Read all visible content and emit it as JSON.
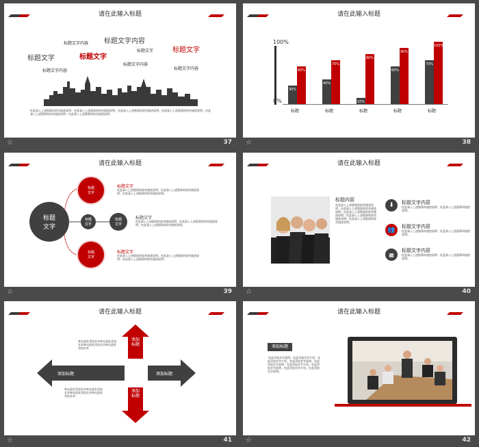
{
  "common": {
    "title": "请在此输入标题"
  },
  "slides": [
    {
      "num": "37",
      "words": [
        "标题文字内容",
        "标题文字内容",
        "标题文字",
        "标题文字",
        "标题文字",
        "标题文字内容",
        "标题文字",
        "标题文字内容",
        "标题文字内容"
      ],
      "text": "在此录入上述图表的综合描述说明，在此录入上述图表的综合描述说明，在此录入上述图表的综合描述说明，在此录入上述图表的综合描述说明，在此录入上述图表的综合描述说明，在此录入上述图表的综合描述说明。"
    },
    {
      "num": "38",
      "chart_data": {
        "type": "bar",
        "categories": [
          "标题",
          "标题",
          "标题",
          "标题",
          "标题"
        ],
        "series": [
          {
            "values": [
              30,
              40,
              10,
              60,
              70
            ]
          },
          {
            "values": [
              60,
              70,
              80,
              90,
              100
            ]
          }
        ],
        "ylim": [
          0,
          100
        ],
        "tick_top": "100%",
        "tick_bottom": "0%"
      }
    },
    {
      "num": "39",
      "center": "标题\n文字",
      "mid": "标题\n文字",
      "nodes": [
        "标题\n文字",
        "标题\n文字",
        "标题\n文字"
      ],
      "items": [
        {
          "t": "标题文字",
          "d": "在此录入上述图表的综合描述说明，在此录入上述图表的综合描述说明，在此录入上述图表的综合描述说明。"
        },
        {
          "t": "标题文字",
          "d": "在此录入上述图表的综合描述说明，在此录入上述图表的综合描述说明，在此录入上述图表的综合描述说明。"
        },
        {
          "t": "标题文字",
          "d": "在此录入上述图表的综合描述说明，在此录入上述图表的综合描述说明，在此录入上述图表的综合描述说明。"
        }
      ]
    },
    {
      "num": "40",
      "photo_heading": "标题内容",
      "photo_text": "在此录入上述图表的综合描述说明，在此录入上述图表的综合描述说明，在此录入上述图表的综合描述说明。在此录入上述图表的综合描述说明，在此录入上述图表的综合描述说明。",
      "items": [
        {
          "t": "标题文字内容",
          "d": "在此录入上述图表的描述说明，在此录入上述图表的描述说明。"
        },
        {
          "t": "标题文字内容",
          "d": "在此录入上述图表的描述说明，在此录入上述图表的描述说明。"
        },
        {
          "t": "标题文字内容",
          "d": "在此录入上述图表的描述说明，在此录入上述图表的描述说明。"
        }
      ]
    },
    {
      "num": "41",
      "arrows": {
        "up": "添加标题",
        "down": "添加标题",
        "left": "添加标题",
        "right": "添加标题"
      },
      "text_top": "单击此处添加文本单击此处添加文本单击此处添加文本单击此处添加文本",
      "text_bottom": "单击此处添加文本单击此处添加文本单击此处添加文本单击此处添加文本"
    },
    {
      "num": "42",
      "tag": "添加标题",
      "text": "·在此添加文字说明，在此添加文字介绍，在此添加文字介绍，在此添加文字说明，在此添加文字说明，在此添加文字介绍，在此添加文字说明，在此添加文字介绍，在此添加文字说明。"
    }
  ],
  "colors": {
    "red": "#c00000",
    "dark": "#404040",
    "bg": "#4a4a4a"
  }
}
